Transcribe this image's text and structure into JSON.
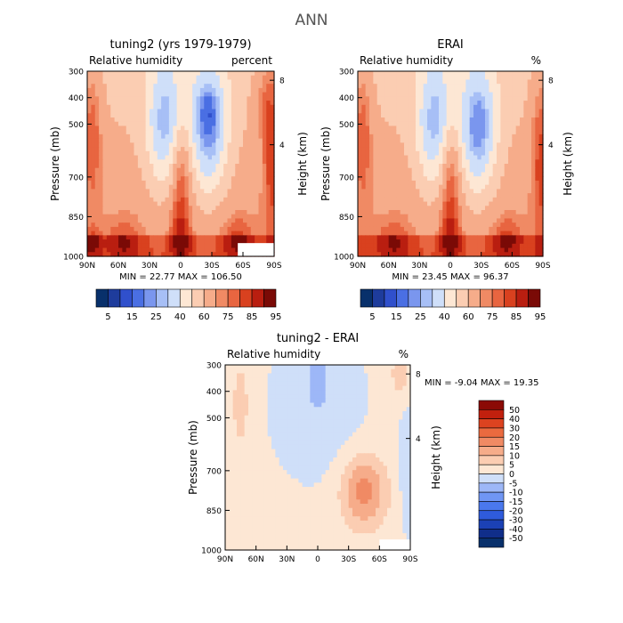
{
  "figure_title": "ANN",
  "colors": {
    "rh_levels": [
      "#08306b",
      "#1e3c9c",
      "#3050cc",
      "#4a6fe3",
      "#7a96ee",
      "#a7bff6",
      "#cfdff9",
      "#fde7d4",
      "#fbcdb2",
      "#f6ac8a",
      "#f08a64",
      "#e86540",
      "#d9411f",
      "#b91e10",
      "#7a0a06"
    ],
    "diff_levels": [
      "#08306b",
      "#102e8a",
      "#1b41b5",
      "#2f5bdc",
      "#4a78ee",
      "#7096f4",
      "#9db7f7",
      "#cfdff9",
      "#fde7d4",
      "#fbcdb2",
      "#f6ac8a",
      "#f08a64",
      "#ea6a3f",
      "#dc4320",
      "#c1200e",
      "#8b0a05"
    ]
  },
  "chart_data": [
    {
      "id": "model",
      "type": "heatmap",
      "title": "tuning2 (yrs 1979-1979)",
      "left_label": "Relative humidity",
      "right_label": "percent",
      "ylabel": "Pressure (mb)",
      "y2label": "Height (km)",
      "yticks": [
        "300",
        "400",
        "500",
        "700",
        "850",
        "1000"
      ],
      "yticks_values": [
        300,
        400,
        500,
        700,
        850,
        1000
      ],
      "y2ticks": [
        "8",
        "4"
      ],
      "y2ticks_values": [
        8,
        4
      ],
      "xticks": [
        "90N",
        "60N",
        "30N",
        "0",
        "30S",
        "60S",
        "90S"
      ],
      "xlim": [
        90,
        -90
      ],
      "ylim": [
        300,
        1000
      ],
      "stats": "MIN =  22.77   MAX = 106.50",
      "min": 22.77,
      "max": 106.5,
      "colorbar_labels": [
        "5",
        "15",
        "25",
        "40",
        "60",
        "75",
        "85",
        "95"
      ],
      "levels": [
        5,
        10,
        15,
        20,
        25,
        30,
        40,
        50,
        60,
        70,
        75,
        80,
        85,
        90,
        95
      ]
    },
    {
      "id": "obs",
      "type": "heatmap",
      "title": "ERAI",
      "left_label": "Relative humidity",
      "right_label": "%",
      "ylabel": "Pressure (mb)",
      "y2label": "Height (km)",
      "yticks": [
        "300",
        "400",
        "500",
        "700",
        "850",
        "1000"
      ],
      "yticks_values": [
        300,
        400,
        500,
        700,
        850,
        1000
      ],
      "y2ticks": [
        "8",
        "4"
      ],
      "y2ticks_values": [
        8,
        4
      ],
      "xticks": [
        "90N",
        "60N",
        "30N",
        "0",
        "30S",
        "60S",
        "90S"
      ],
      "xlim": [
        90,
        -90
      ],
      "ylim": [
        300,
        1000
      ],
      "stats": "MIN =  23.45   MAX =  96.37",
      "min": 23.45,
      "max": 96.37,
      "colorbar_labels": [
        "5",
        "15",
        "25",
        "40",
        "60",
        "75",
        "85",
        "95"
      ],
      "levels": [
        5,
        10,
        15,
        20,
        25,
        30,
        40,
        50,
        60,
        70,
        75,
        80,
        85,
        90,
        95
      ]
    },
    {
      "id": "diff",
      "type": "heatmap",
      "title": "tuning2 - ERAI",
      "left_label": "Relative humidity",
      "right_label": "%",
      "ylabel": "Pressure (mb)",
      "y2label": "Height (km)",
      "yticks": [
        "300",
        "400",
        "500",
        "700",
        "850",
        "1000"
      ],
      "yticks_values": [
        300,
        400,
        500,
        700,
        850,
        1000
      ],
      "y2ticks": [
        "8",
        "4"
      ],
      "y2ticks_values": [
        8,
        4
      ],
      "xticks": [
        "90N",
        "60N",
        "30N",
        "0",
        "30S",
        "60S",
        "90S"
      ],
      "xlim": [
        90,
        -90
      ],
      "ylim": [
        300,
        1000
      ],
      "stats": "MIN =  -9.04   MAX =  19.35",
      "min": -9.04,
      "max": 19.35,
      "colorbar_labels": [
        "50",
        "40",
        "30",
        "20",
        "15",
        "10",
        "5",
        "0",
        "-5",
        "-10",
        "-15",
        "-20",
        "-30",
        "-40",
        "-50"
      ],
      "levels": [
        -50,
        -40,
        -30,
        -20,
        -15,
        -10,
        -5,
        0,
        5,
        10,
        15,
        20,
        30,
        40,
        50
      ]
    }
  ]
}
